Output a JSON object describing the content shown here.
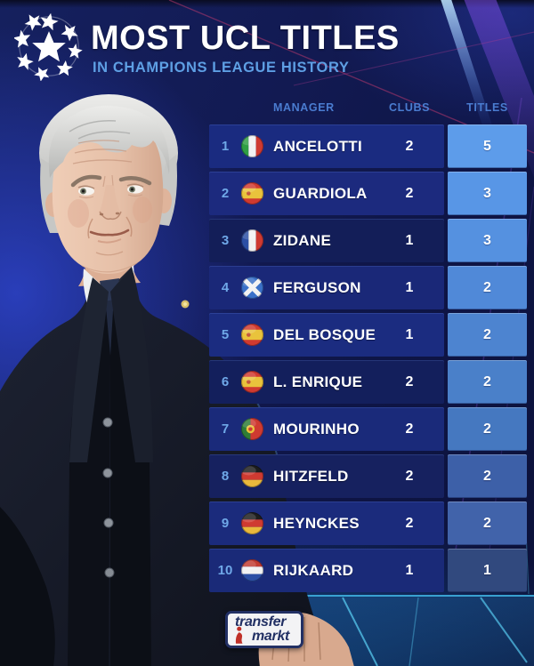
{
  "header": {
    "title": "MOST UCL TITLES",
    "subtitle": "IN CHAMPIONS LEAGUE HISTORY"
  },
  "table": {
    "columns": [
      "MANAGER",
      "CLUBS",
      "TITLES"
    ],
    "rows": [
      {
        "rank": 1,
        "country": "Italy",
        "manager": "ANCELOTTI",
        "clubs": 2,
        "titles": 5
      },
      {
        "rank": 2,
        "country": "Spain",
        "manager": "GUARDIOLA",
        "clubs": 2,
        "titles": 3
      },
      {
        "rank": 3,
        "country": "France",
        "manager": "ZIDANE",
        "clubs": 1,
        "titles": 3
      },
      {
        "rank": 4,
        "country": "Scotland",
        "manager": "FERGUSON",
        "clubs": 1,
        "titles": 2
      },
      {
        "rank": 5,
        "country": "Spain",
        "manager": "DEL BOSQUE",
        "clubs": 1,
        "titles": 2
      },
      {
        "rank": 6,
        "country": "Spain",
        "manager": "L. ENRIQUE",
        "clubs": 2,
        "titles": 2
      },
      {
        "rank": 7,
        "country": "Portugal",
        "manager": "MOURINHO",
        "clubs": 2,
        "titles": 2
      },
      {
        "rank": 8,
        "country": "Germany",
        "manager": "HITZFELD",
        "clubs": 2,
        "titles": 2
      },
      {
        "rank": 9,
        "country": "Germany",
        "manager": "HEYNCKES",
        "clubs": 2,
        "titles": 2
      },
      {
        "rank": 10,
        "country": "Netherlands",
        "manager": "RIJKAARD",
        "clubs": 1,
        "titles": 1
      }
    ]
  },
  "footer": {
    "brand_top": "transfer",
    "brand_bottom": "markt"
  },
  "colors": {
    "title": "#ffffff",
    "subtitle": "#5e9fe4",
    "column_header": "#4a7cd0",
    "rank": "#6fa8e8",
    "row_shades": [
      "#1a2b80",
      "#1c2a7e",
      "#131e58",
      "#1a2878",
      "#1b2c80",
      "#131f5c",
      "#1a2a7a",
      "#16215f",
      "#1b2b7c",
      "#1a2a78"
    ],
    "titles_shades": [
      "#5d9cea",
      "#5896e6",
      "#5591e0",
      "#5089d8",
      "#4d84d0",
      "#4a80c9",
      "#4578c0",
      "#3d60a8",
      "#4163aa",
      "#31497e"
    ],
    "background": "#101846",
    "beam_magenta": "#c23a6e",
    "beam_cyan": "#45c2e8",
    "brand_navy": "#223064",
    "brand_red": "#c03028"
  }
}
